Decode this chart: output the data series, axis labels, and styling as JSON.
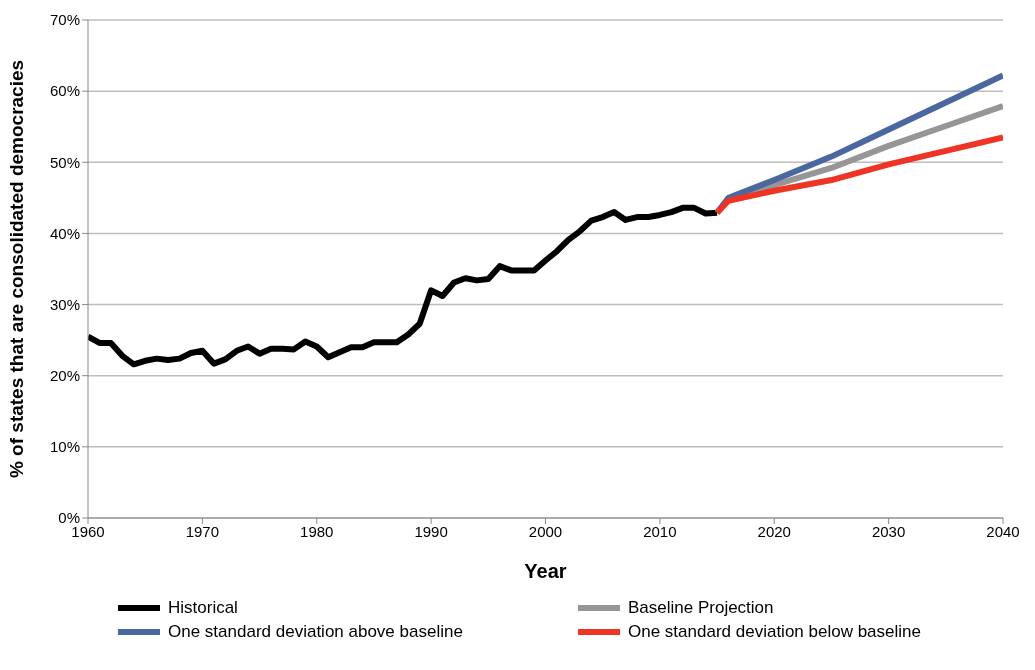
{
  "chart_data": {
    "type": "line",
    "xlabel": "Year",
    "ylabel": "% of states that are consolidated democracies",
    "xlim": [
      1960,
      2040
    ],
    "xticks": [
      1960,
      1970,
      1980,
      1990,
      2000,
      2010,
      2020,
      2030,
      2040
    ],
    "ylim": [
      0,
      70
    ],
    "yticks": [
      {
        "value": 0,
        "label": "0%"
      },
      {
        "value": 10,
        "label": "10%"
      },
      {
        "value": 20,
        "label": "20%"
      },
      {
        "value": 30,
        "label": "30%"
      },
      {
        "value": 40,
        "label": "40%"
      },
      {
        "value": 50,
        "label": "50%"
      },
      {
        "value": 60,
        "label": "60%"
      },
      {
        "value": 70,
        "label": "70%"
      }
    ],
    "grid": "y",
    "legend": "bottom",
    "marker": "none",
    "line_style": "solid",
    "series": [
      {
        "name": "Historical",
        "color": "#000000",
        "x": [
          1960,
          1961,
          1962,
          1963,
          1964,
          1965,
          1966,
          1967,
          1968,
          1969,
          1970,
          1971,
          1972,
          1973,
          1974,
          1975,
          1976,
          1977,
          1978,
          1979,
          1980,
          1981,
          1982,
          1983,
          1984,
          1985,
          1986,
          1987,
          1988,
          1989,
          1990,
          1991,
          1992,
          1993,
          1994,
          1995,
          1996,
          1997,
          1998,
          1999,
          2000,
          2001,
          2002,
          2003,
          2004,
          2005,
          2006,
          2007,
          2008,
          2009,
          2010,
          2011,
          2012,
          2013,
          2014,
          2015
        ],
        "values": [
          25.5,
          24.6,
          24.6,
          22.8,
          21.6,
          22.1,
          22.4,
          22.2,
          22.4,
          23.2,
          23.5,
          21.7,
          22.3,
          23.5,
          24.1,
          23.1,
          23.8,
          23.8,
          23.7,
          24.8,
          24.1,
          22.6,
          23.3,
          24.0,
          24.0,
          24.7,
          24.7,
          24.7,
          25.8,
          27.3,
          32.0,
          31.2,
          33.1,
          33.7,
          33.4,
          33.6,
          35.4,
          34.8,
          34.8,
          34.8,
          36.2,
          37.5,
          39.1,
          40.3,
          41.8,
          42.3,
          43.0,
          41.9,
          42.3,
          42.3,
          42.6,
          43.0,
          43.6,
          43.6,
          42.8,
          42.9
        ]
      },
      {
        "name": "Baseline Projection",
        "color": "#969696",
        "x": [
          2015,
          2016,
          2020,
          2025,
          2030,
          2035,
          2040
        ],
        "values": [
          42.9,
          44.9,
          46.8,
          49.2,
          52.3,
          55.1,
          57.9
        ]
      },
      {
        "name": "One standard deviation above baseline",
        "color": "#4a67a0",
        "x": [
          2015,
          2016,
          2020,
          2025,
          2030,
          2035,
          2040
        ],
        "values": [
          42.9,
          45.0,
          47.5,
          50.8,
          54.6,
          58.4,
          62.2
        ]
      },
      {
        "name": "One standard deviation below baseline",
        "color": "#ee3424",
        "x": [
          2015,
          2016,
          2020,
          2025,
          2030,
          2035,
          2040
        ],
        "values": [
          42.9,
          44.6,
          46.0,
          47.5,
          49.7,
          51.6,
          53.5
        ]
      }
    ]
  }
}
